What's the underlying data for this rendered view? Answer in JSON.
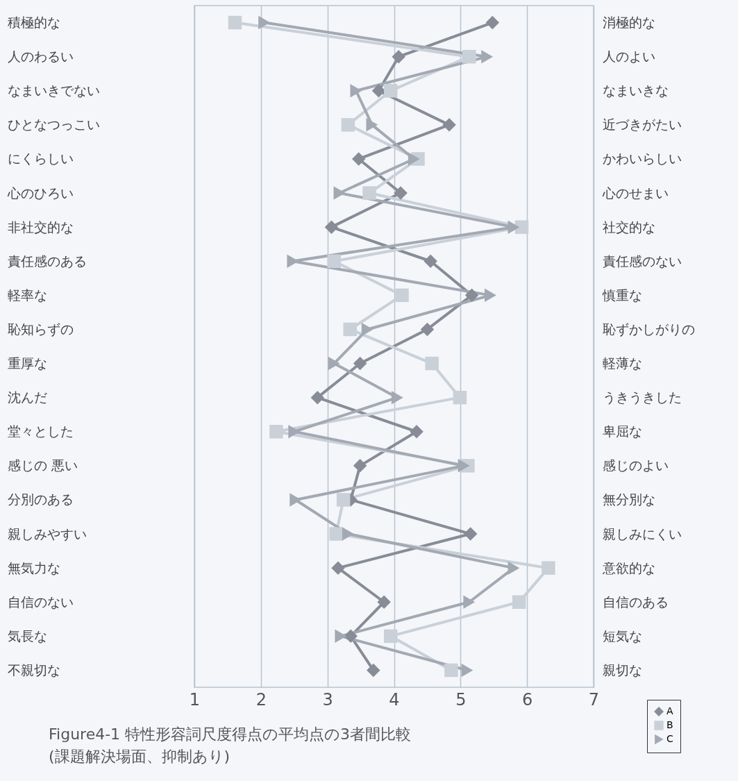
{
  "chart_data": {
    "type": "line",
    "title": "Figure4-1  特性形容詞尺度得点の平均点の3者間比較",
    "subtitle": "(課題解決場面、抑制あり)",
    "categories": [
      "積極的な",
      "人のわるい",
      "なまいきでない",
      "ひとなつっこい",
      "にくらしい",
      "心のひろい",
      "非社交的な",
      "責任感のある",
      "軽率な",
      "恥知らずの",
      "重厚な",
      "沈んだ",
      "堂々とした",
      "感じの 悪い",
      "分別のある",
      "親しみやすい",
      "無気力な",
      "自信のない",
      "気長な",
      "不親切な"
    ],
    "y2_categories": [
      "消極的な",
      "人のよい",
      "なまいきな",
      "近づきがたい",
      "かわいらしい",
      "心のせまい",
      "社交的な",
      "責任感のない",
      "慎重な",
      "恥ずかしがりの",
      "軽薄な",
      "うきうきした",
      "卑屈な",
      "感じのよい",
      "無分別な",
      "親しみにくい",
      "意欲的な",
      "自信のある",
      "短気な",
      "親切な"
    ],
    "orientation": "horizontal",
    "xlim": [
      1,
      7
    ],
    "xticks": [
      1,
      2,
      3,
      4,
      5,
      6,
      7
    ],
    "grid": "x",
    "legend": "bottom right",
    "series": [
      {
        "name": "A",
        "color": "#878c96",
        "marker": "diamond",
        "values": [
          5.48,
          4.07,
          3.77,
          4.83,
          3.47,
          4.1,
          3.06,
          4.55,
          5.17,
          4.5,
          3.49,
          2.85,
          4.34,
          3.49,
          3.35,
          5.15,
          3.16,
          3.85,
          3.35,
          3.69
        ]
      },
      {
        "name": "B",
        "color": "#c9d0d8",
        "marker": "square",
        "values": [
          1.61,
          5.13,
          3.95,
          3.31,
          4.36,
          3.63,
          5.92,
          3.1,
          4.12,
          3.34,
          4.57,
          4.99,
          2.23,
          5.11,
          3.24,
          3.13,
          6.32,
          5.88,
          3.95,
          4.86
        ]
      },
      {
        "name": "C",
        "color": "#a3a9b2",
        "marker": "triangle",
        "values": [
          2.05,
          5.4,
          3.43,
          3.67,
          4.3,
          3.18,
          5.8,
          2.48,
          5.45,
          3.6,
          3.1,
          4.05,
          2.5,
          5.05,
          2.52,
          3.31,
          5.8,
          5.13,
          3.2,
          5.1
        ]
      }
    ]
  }
}
